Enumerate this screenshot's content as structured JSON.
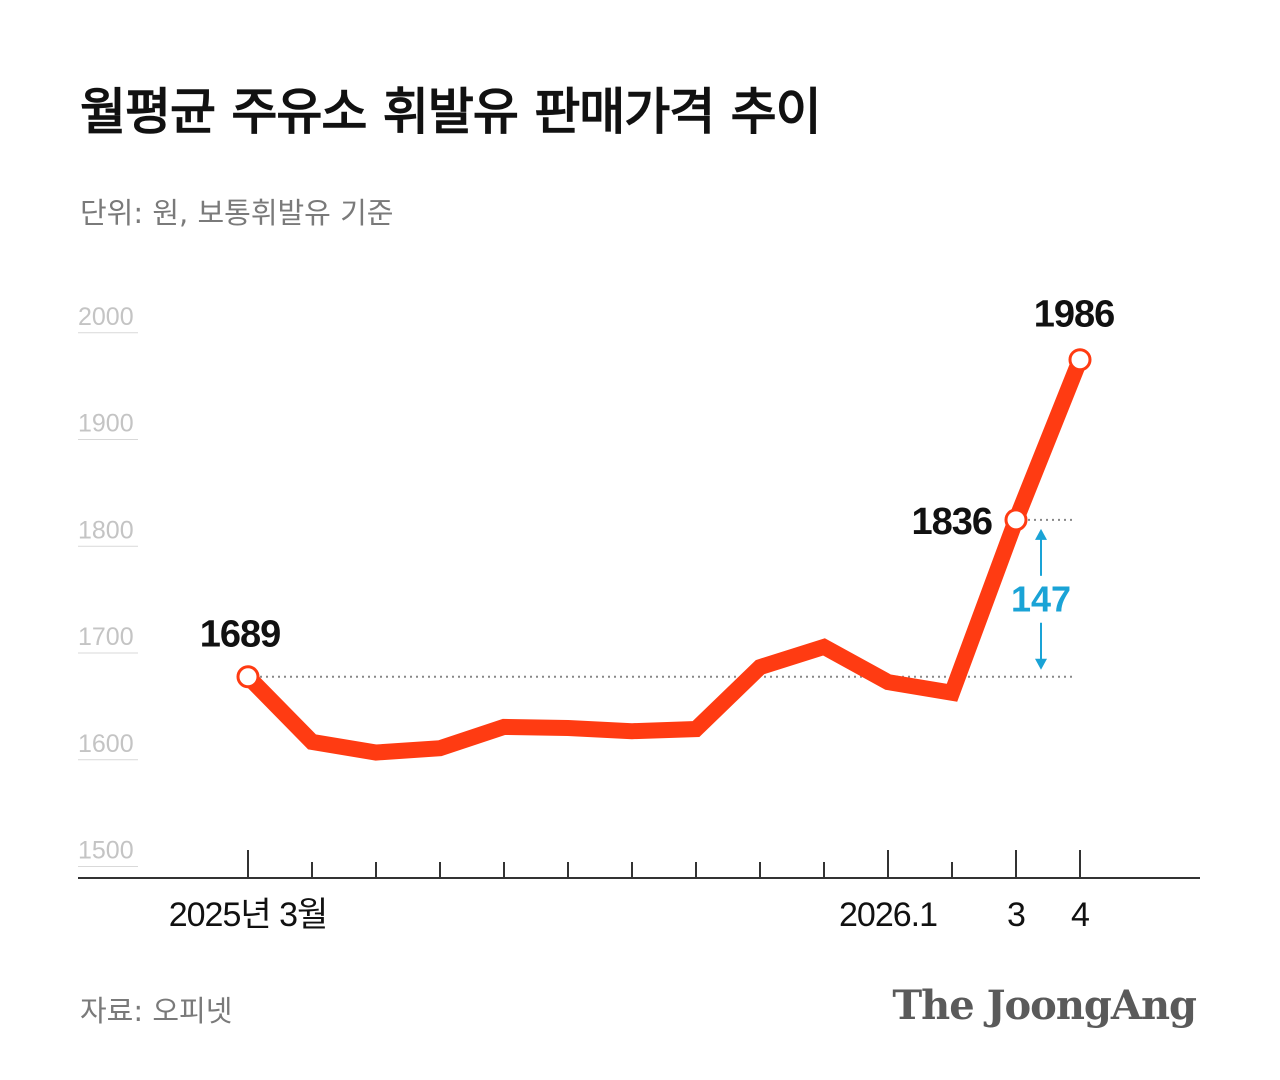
{
  "header": {
    "title": "월평균 주유소 휘발유 판매가격 추이",
    "subtitle": "단위: 원, 보통휘발유 기준"
  },
  "footer": {
    "source": "자료: 오피넷",
    "logo": "The JoongAng"
  },
  "colors": {
    "line": "#ff3b12",
    "accent": "#1aa3d6",
    "axis": "#333333",
    "grid": "#cccccc"
  },
  "chart_data": {
    "type": "line",
    "title": "월평균 주유소 휘발유 판매가격 추이",
    "ylim": [
      1500,
      2000
    ],
    "yticks": [
      "1500",
      "1600",
      "1700",
      "1800",
      "1900",
      "2000"
    ],
    "x_labels": [
      {
        "index": 0,
        "text": "2025년 3월"
      },
      {
        "index": 10,
        "text": "2026.1"
      },
      {
        "index": 12,
        "text": "3"
      },
      {
        "index": 13,
        "text": "4"
      }
    ],
    "values": [
      1689,
      1628,
      1618,
      1622,
      1642,
      1641,
      1638,
      1640,
      1698,
      1717,
      1684,
      1674,
      1836,
      1986
    ],
    "point_labels": [
      {
        "index": 0,
        "text": "1689"
      },
      {
        "index": 12,
        "text": "1836"
      },
      {
        "index": 13,
        "text": "1986"
      }
    ],
    "difference": {
      "from_index": 0,
      "to_index": 12,
      "text": "147"
    }
  }
}
